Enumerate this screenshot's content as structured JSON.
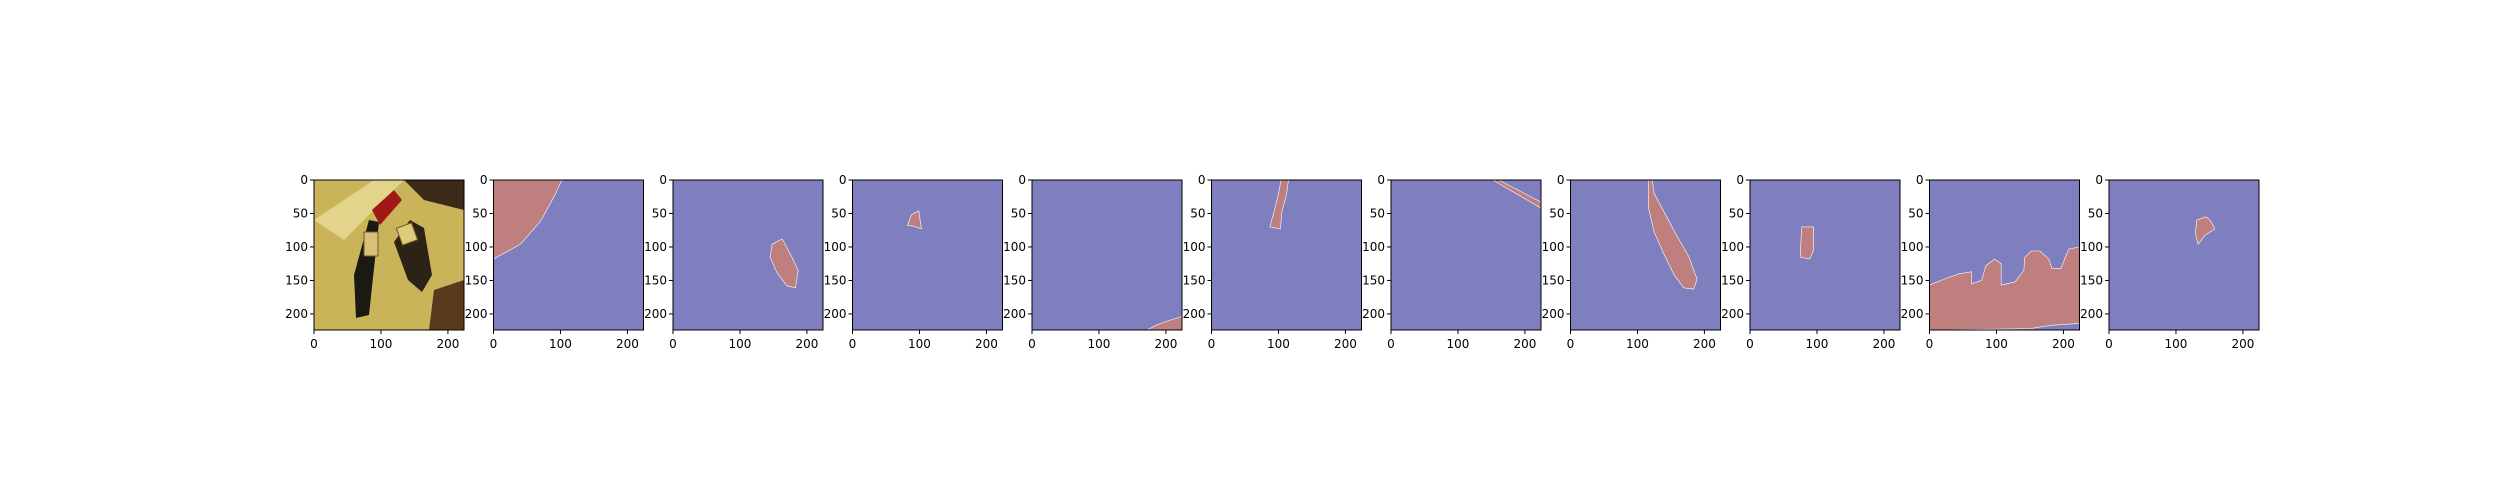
{
  "figure": {
    "panel_count": 11,
    "colors": {
      "background": "#7f7fbf",
      "mask": "#bf7f7f",
      "frame": "#000000"
    }
  },
  "chart_data": {
    "type": "image-grid",
    "title": "",
    "xlabel": "",
    "ylabel": "",
    "xlim": [
      0,
      224
    ],
    "ylim": [
      224,
      0
    ],
    "xticks": [
      0,
      100,
      200
    ],
    "yticks": [
      0,
      50,
      100,
      150,
      200
    ],
    "panels": [
      {
        "id": "photo",
        "kind": "image",
        "description_icon": "photo-thumbnail-icon"
      },
      {
        "id": "mask-1",
        "kind": "mask",
        "regions": [
          [
            [
              0,
              0
            ],
            [
              102,
              0
            ],
            [
              92,
              22
            ],
            [
              70,
              62
            ],
            [
              40,
              96
            ],
            [
              0,
              118
            ]
          ]
        ]
      },
      {
        "id": "mask-2",
        "kind": "mask",
        "regions": [
          [
            [
              148,
              96
            ],
            [
              163,
              88
            ],
            [
              175,
              110
            ],
            [
              187,
              135
            ],
            [
              183,
              161
            ],
            [
              170,
              158
            ],
            [
              155,
              138
            ],
            [
              145,
              115
            ]
          ]
        ]
      },
      {
        "id": "mask-3",
        "kind": "mask",
        "regions": [
          [
            [
              88,
              52
            ],
            [
              99,
              46
            ],
            [
              101,
              60
            ],
            [
              103,
              73
            ],
            [
              92,
              69
            ],
            [
              82,
              68
            ]
          ]
        ]
      },
      {
        "id": "mask-4",
        "kind": "mask",
        "regions": [
          [
            [
              172,
              224
            ],
            [
              224,
              224
            ],
            [
              224,
              204
            ],
            [
              204,
              210
            ],
            [
              185,
              217
            ]
          ]
        ]
      },
      {
        "id": "mask-5",
        "kind": "mask",
        "regions": [
          [
            [
              104,
              0
            ],
            [
              115,
              0
            ],
            [
              112,
              22
            ],
            [
              105,
              48
            ],
            [
              103,
              73
            ],
            [
              87,
              70
            ],
            [
              94,
              45
            ],
            [
              100,
              20
            ]
          ]
        ]
      },
      {
        "id": "mask-6",
        "kind": "mask",
        "regions": [
          [
            [
              152,
              0
            ],
            [
              161,
              0
            ],
            [
              224,
              33
            ],
            [
              224,
              42
            ]
          ]
        ]
      },
      {
        "id": "mask-7",
        "kind": "mask",
        "regions": [
          [
            [
              117,
              0
            ],
            [
              122,
              0
            ],
            [
              125,
              20
            ],
            [
              142,
              52
            ],
            [
              157,
              80
            ],
            [
              177,
              115
            ],
            [
              189,
              148
            ],
            [
              184,
              163
            ],
            [
              169,
              161
            ],
            [
              155,
              142
            ],
            [
              140,
              112
            ],
            [
              125,
              78
            ],
            [
              116,
              40
            ]
          ]
        ]
      },
      {
        "id": "mask-8",
        "kind": "mask",
        "regions": [
          [
            [
              77,
              70
            ],
            [
              95,
              70
            ],
            [
              95,
              105
            ],
            [
              89,
              118
            ],
            [
              75,
              115
            ]
          ]
        ]
      },
      {
        "id": "mask-9",
        "kind": "mask",
        "regions": [
          [
            [
              0,
              157
            ],
            [
              22,
              148
            ],
            [
              44,
              140
            ],
            [
              63,
              137
            ],
            [
              63,
              155
            ],
            [
              78,
              150
            ],
            [
              84,
              128
            ],
            [
              97,
              118
            ],
            [
              107,
              125
            ],
            [
              107,
              157
            ],
            [
              128,
              152
            ],
            [
              141,
              135
            ],
            [
              142,
              116
            ],
            [
              152,
              106
            ],
            [
              165,
              106
            ],
            [
              178,
              118
            ],
            [
              183,
              132
            ],
            [
              196,
              132
            ],
            [
              208,
              103
            ],
            [
              224,
              100
            ],
            [
              224,
              214
            ],
            [
              200,
              216
            ],
            [
              181,
              217
            ],
            [
              150,
              222
            ],
            [
              0,
              224
            ]
          ]
        ]
      },
      {
        "id": "mask-10",
        "kind": "mask",
        "regions": [
          [
            [
              131,
              60
            ],
            [
              145,
              55
            ],
            [
              151,
              60
            ],
            [
              158,
              73
            ],
            [
              143,
              83
            ],
            [
              133,
              96
            ],
            [
              129,
              80
            ]
          ]
        ]
      }
    ]
  }
}
